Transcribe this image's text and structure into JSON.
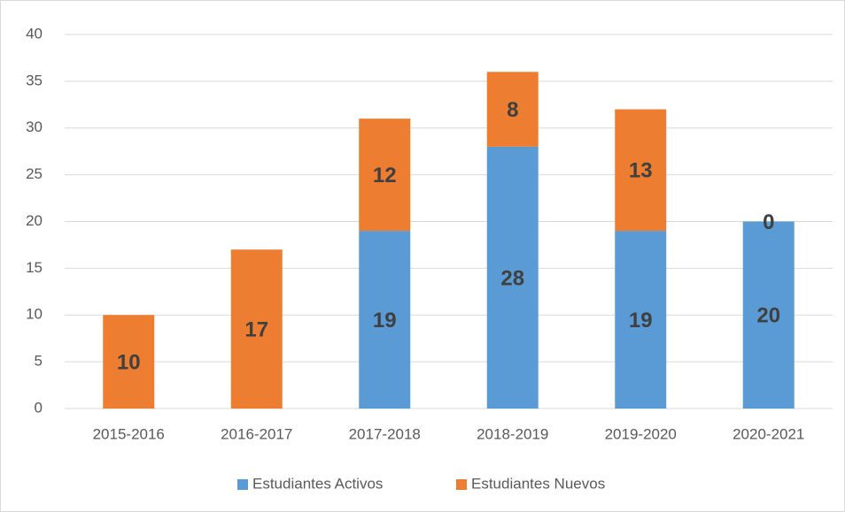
{
  "chart_data": {
    "type": "stacked_bar",
    "categories": [
      "2015-2016",
      "2016-2017",
      "2017-2018",
      "2018-2019",
      "2019-2020",
      "2020-2021"
    ],
    "series": [
      {
        "name": "Estudiantes Activos",
        "color": "#5b9bd5",
        "values": [
          null,
          null,
          19,
          28,
          19,
          20
        ]
      },
      {
        "name": "Estudiantes Nuevos",
        "color": "#ed7d31",
        "values": [
          10,
          17,
          12,
          8,
          13,
          0
        ]
      }
    ],
    "ylim": [
      0,
      40
    ],
    "yticks": [
      0,
      5,
      10,
      15,
      20,
      25,
      30,
      35,
      40
    ],
    "grid": true,
    "legend": "bottom"
  }
}
